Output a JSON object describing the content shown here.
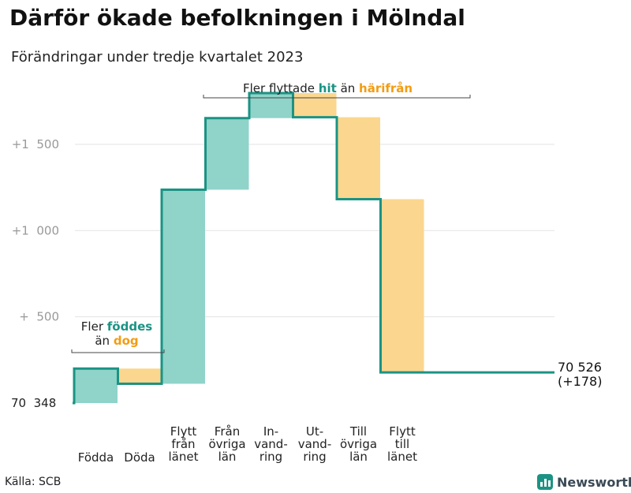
{
  "header": {
    "title": "Därför ökade befolkningen i Mölndal",
    "subtitle": "Förändringar under tredje kvartalet 2023"
  },
  "footer": {
    "source": "Källa: SCB",
    "brand": "Newsworthy"
  },
  "colors": {
    "increase": "#8fd3c9",
    "decrease": "#fbd68e",
    "line": "#1b9384",
    "grid": "#e3e3e3",
    "accent_teal": "#1b9384",
    "accent_orange": "#f39c12"
  },
  "annotations": {
    "migration": {
      "prefix": "Fler flyttade",
      "hit": "hit",
      "middle": "än",
      "harifran": "härifrån"
    },
    "births": {
      "prefix": "Fler",
      "foddes": "föddes",
      "middle": "än",
      "dog": "dog"
    }
  },
  "chart_data": {
    "type": "waterfall",
    "title": "Därför ökade befolkningen i Mölndal",
    "subtitle": "Förändringar under tredje kvartalet 2023",
    "start_value": 70348,
    "end_value": 70526,
    "end_label": "70 526",
    "net_change_label": "(+178)",
    "y_tick_values": [
      0,
      500,
      1000,
      1500
    ],
    "y_tick_labels": [
      "70  348",
      "+  500",
      "+1  000",
      "+1  500"
    ],
    "ylim": [
      0,
      1600
    ],
    "steps": [
      {
        "label": "Födda",
        "change": 200,
        "type": "increase"
      },
      {
        "label": "Döda",
        "change": -88,
        "type": "decrease"
      },
      {
        "label": "Flytt från länet",
        "change": 1125,
        "type": "increase"
      },
      {
        "label": "Från övriga län",
        "change": 415,
        "type": "increase"
      },
      {
        "label": "Invandring",
        "change": 145,
        "type": "increase"
      },
      {
        "label": "Utvandring",
        "change": -140,
        "type": "decrease"
      },
      {
        "label": "Till övriga län",
        "change": -475,
        "type": "decrease"
      },
      {
        "label": "Flytt till länet",
        "change": -1004,
        "type": "decrease"
      }
    ],
    "x_labels": [
      [
        "Födda"
      ],
      [
        "Döda"
      ],
      [
        "Flytt",
        "från",
        "länet"
      ],
      [
        "Från",
        "övriga",
        "län"
      ],
      [
        "In-",
        "vand-",
        "ring"
      ],
      [
        "Ut-",
        "vand-",
        "ring"
      ],
      [
        "Till",
        "övriga",
        "län"
      ],
      [
        "Flytt",
        "till",
        "länet"
      ]
    ]
  }
}
